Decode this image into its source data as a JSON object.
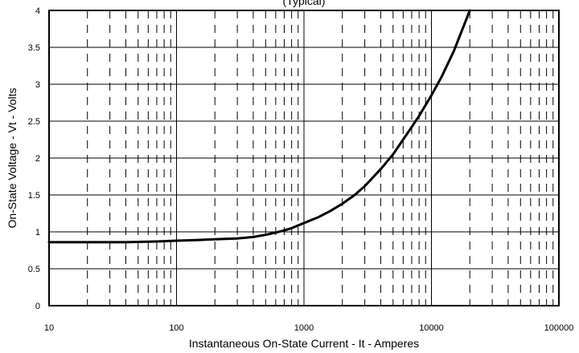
{
  "chart_data": {
    "type": "line",
    "title": "(Typical)",
    "xlabel": "Instantaneous On-State Current - It - Amperes",
    "ylabel": "On-State Voltage  -  Vt  -  Volts",
    "x_scale": "log",
    "xlim": [
      10,
      100000
    ],
    "ylim": [
      0,
      4
    ],
    "x_ticks": [
      "10",
      "100",
      "1000",
      "10000",
      "100000"
    ],
    "y_ticks": [
      "0",
      "0.5",
      "1",
      "1.5",
      "2",
      "2.5",
      "3",
      "3.5",
      "4"
    ],
    "grid": true,
    "series": [
      {
        "x": [
          10,
          20,
          40,
          70,
          100,
          150,
          200,
          300,
          400,
          500,
          600,
          700,
          800,
          1000,
          1300,
          1600,
          2000,
          2500,
          3000,
          4000,
          5000,
          6000,
          7000,
          8000,
          10000,
          12000,
          15000,
          18000,
          20000
        ],
        "y": [
          0.86,
          0.86,
          0.86,
          0.87,
          0.88,
          0.89,
          0.9,
          0.91,
          0.93,
          0.96,
          0.99,
          1.02,
          1.05,
          1.12,
          1.2,
          1.28,
          1.38,
          1.5,
          1.62,
          1.85,
          2.05,
          2.25,
          2.42,
          2.57,
          2.85,
          3.1,
          3.45,
          3.8,
          4.0
        ]
      }
    ]
  }
}
